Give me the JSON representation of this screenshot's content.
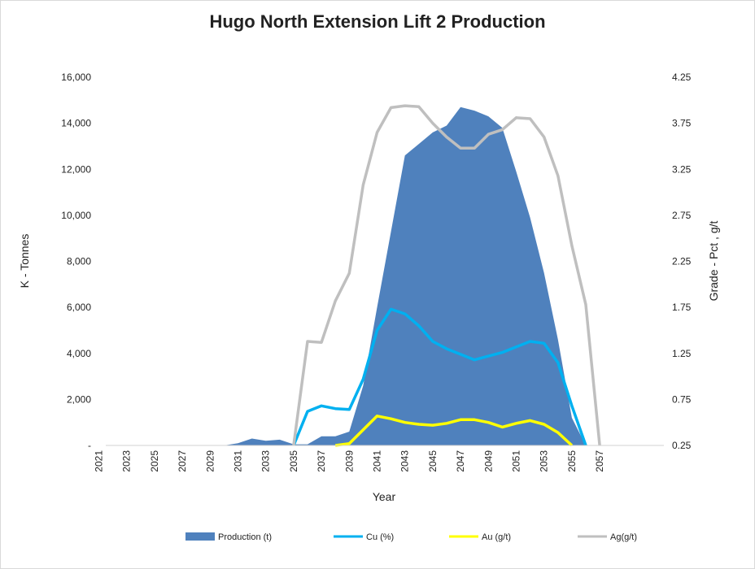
{
  "chart_data": {
    "type": "area",
    "title": "Hugo North Extension Lift 2 Production",
    "xlabel": "Year",
    "ylabel_left": "K - Tonnes",
    "ylabel_right": "Grade - Pct , g/t",
    "x": [
      2021,
      2022,
      2023,
      2024,
      2025,
      2026,
      2027,
      2028,
      2029,
      2030,
      2031,
      2032,
      2033,
      2034,
      2035,
      2036,
      2037,
      2038,
      2039,
      2040,
      2041,
      2042,
      2043,
      2044,
      2045,
      2046,
      2047,
      2048,
      2049,
      2050,
      2051,
      2052,
      2053,
      2054,
      2055,
      2056,
      2057,
      2058,
      2059,
      2060
    ],
    "x_tick_labels": [
      "2021",
      "2023",
      "2025",
      "2027",
      "2029",
      "2031",
      "2033",
      "2035",
      "2037",
      "2039",
      "2041",
      "2043",
      "2045",
      "2047",
      "2049",
      "2051",
      "2053",
      "2055",
      "2057"
    ],
    "ylim_left": [
      0,
      16000
    ],
    "yticks_left": [
      "-",
      "2,000",
      "4,000",
      "6,000",
      "8,000",
      "10,000",
      "12,000",
      "14,000",
      "16,000"
    ],
    "ylim_right": [
      0.25,
      4.25
    ],
    "yticks_right": [
      "0.25",
      "0.75",
      "1.25",
      "1.75",
      "2.25",
      "2.75",
      "3.25",
      "3.75",
      "4.25"
    ],
    "series": [
      {
        "name": "Production (t)",
        "axis": "left",
        "kind": "area",
        "color": "#4f81bd",
        "x": [
          2021,
          2030,
          2031,
          2032,
          2033,
          2034,
          2035,
          2036,
          2037,
          2038,
          2039,
          2040,
          2041,
          2042,
          2043,
          2044,
          2045,
          2046,
          2047,
          2048,
          2049,
          2050,
          2051,
          2052,
          2053,
          2054,
          2055,
          2056
        ],
        "values": [
          0,
          0,
          100,
          300,
          200,
          250,
          50,
          50,
          400,
          400,
          600,
          2600,
          6000,
          9300,
          12600,
          13100,
          13600,
          13900,
          14700,
          14550,
          14300,
          13800,
          11900,
          9900,
          7500,
          4600,
          1200,
          0
        ]
      },
      {
        "name": "Cu (%)",
        "axis": "right",
        "kind": "line",
        "color": "#00b0f0",
        "x": [
          2035,
          2036,
          2037,
          2038,
          2039,
          2040,
          2041,
          2042,
          2043,
          2044,
          2045,
          2046,
          2047,
          2048,
          2049,
          2050,
          2051,
          2052,
          2053,
          2054,
          2055,
          2056
        ],
        "values": [
          0.25,
          0.62,
          0.68,
          0.65,
          0.64,
          0.97,
          1.5,
          1.73,
          1.68,
          1.55,
          1.38,
          1.3,
          1.24,
          1.18,
          1.22,
          1.26,
          1.32,
          1.38,
          1.36,
          1.15,
          0.68,
          0.25
        ]
      },
      {
        "name": "Au (g/t)",
        "axis": "right",
        "kind": "line",
        "color": "#ffff00",
        "x": [
          2038,
          2039,
          2040,
          2041,
          2042,
          2043,
          2044,
          2045,
          2046,
          2047,
          2048,
          2049,
          2050,
          2051,
          2052,
          2053,
          2054,
          2055
        ],
        "values": [
          0.25,
          0.27,
          0.42,
          0.57,
          0.54,
          0.5,
          0.48,
          0.47,
          0.49,
          0.53,
          0.53,
          0.5,
          0.45,
          0.49,
          0.52,
          0.48,
          0.39,
          0.25
        ]
      },
      {
        "name": "Ag(g/t)",
        "axis": "right",
        "kind": "line",
        "color": "#bfbfbf",
        "x": [
          2035,
          2036,
          2037,
          2038,
          2039,
          2040,
          2041,
          2042,
          2043,
          2044,
          2045,
          2046,
          2047,
          2048,
          2049,
          2050,
          2051,
          2052,
          2053,
          2054,
          2055,
          2056,
          2057
        ],
        "values": [
          0.25,
          1.38,
          1.37,
          1.82,
          2.12,
          3.08,
          3.65,
          3.92,
          3.94,
          3.93,
          3.75,
          3.6,
          3.48,
          3.48,
          3.63,
          3.68,
          3.81,
          3.8,
          3.6,
          3.18,
          2.42,
          1.78,
          0.25
        ]
      }
    ],
    "legend_position": "bottom",
    "grid": false
  }
}
